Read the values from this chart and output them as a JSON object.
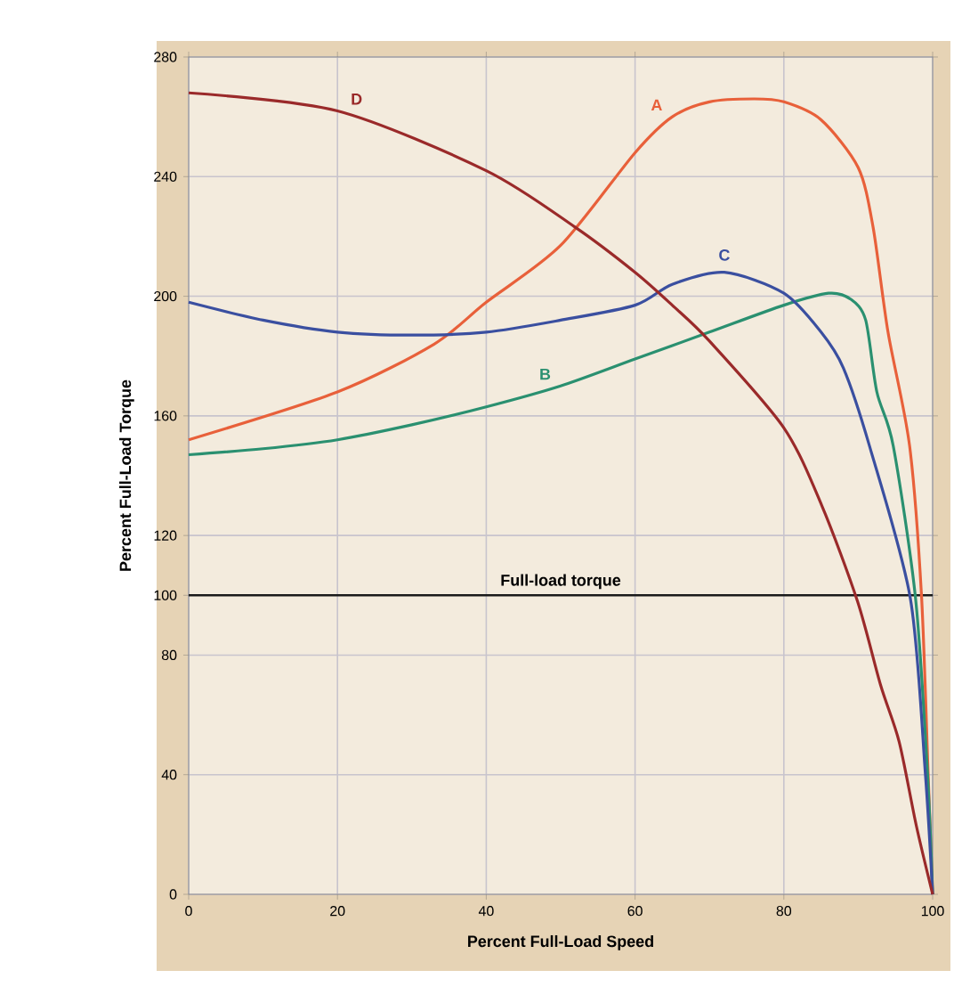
{
  "chart_data": {
    "type": "line",
    "xlabel": "Percent Full-Load Speed",
    "ylabel": "Percent Full-Load Torque",
    "xlim": [
      0,
      100
    ],
    "xticks": [
      0,
      20,
      40,
      60,
      80,
      100
    ],
    "ylim": [
      0,
      280
    ],
    "yticks": [
      0,
      40,
      80,
      100,
      120,
      160,
      200,
      240,
      280
    ],
    "grid": true,
    "legend": false,
    "marker": "none",
    "line_style": "solid",
    "ref_lines": [
      {
        "axis": "y",
        "value": 100,
        "label": "Full-load torque",
        "color": "#1a1a1a"
      }
    ],
    "series": [
      {
        "name": "A",
        "color": "#e8603a",
        "x": [
          0,
          20,
          33,
          40,
          50,
          60,
          65,
          70,
          76,
          80,
          85,
          90,
          92,
          94,
          96.9,
          98.5,
          99.4,
          100
        ],
        "values": [
          152,
          168,
          184,
          198,
          217,
          248,
          260,
          265,
          266,
          265,
          259,
          243,
          223,
          188,
          150,
          100,
          40,
          0
        ]
      },
      {
        "name": "B",
        "color": "#2a9070",
        "x": [
          0,
          10,
          20,
          30,
          40,
          50,
          60,
          70,
          80,
          86,
          89,
          91,
          92.5,
          94.7,
          97.7,
          99.3,
          100
        ],
        "values": [
          147,
          149,
          152,
          157,
          163,
          170,
          179,
          188,
          197,
          201,
          199,
          192,
          168,
          150,
          99,
          41,
          0
        ]
      },
      {
        "name": "C",
        "color": "#3a4fa0",
        "x": [
          0,
          10,
          20,
          30,
          40,
          50,
          60,
          65,
          72,
          80,
          85,
          88,
          91.5,
          97,
          99,
          100
        ],
        "values": [
          198,
          192,
          188,
          187,
          188,
          192,
          197,
          204,
          208,
          201,
          188,
          176,
          150,
          99,
          41,
          0
        ]
      },
      {
        "name": "D",
        "color": "#9a2a2a",
        "x": [
          0,
          20,
          40,
          52,
          60,
          65,
          70,
          80,
          85.1,
          89.9,
          93,
          95.5,
          97.8,
          100
        ],
        "values": [
          268,
          262,
          242,
          223,
          208,
          197,
          185,
          156,
          130,
          98,
          70,
          51,
          23,
          0
        ]
      }
    ]
  }
}
